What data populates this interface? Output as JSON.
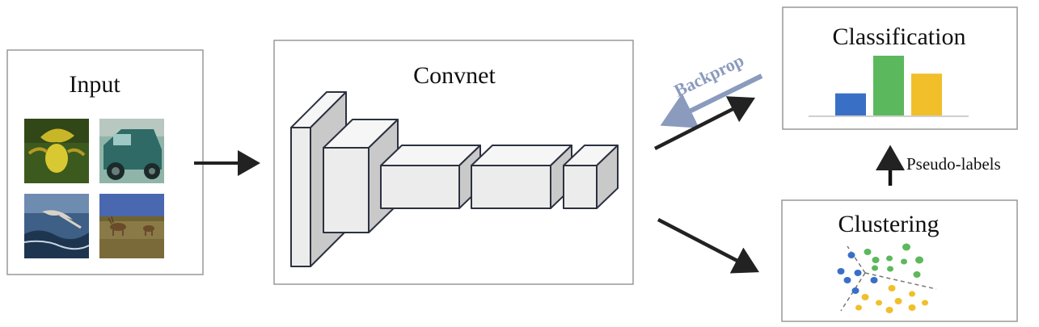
{
  "input": {
    "title": "Input",
    "images": [
      {
        "name": "flower",
        "colors": [
          "#3c5a1e",
          "#d8c832",
          "#2a3a14"
        ]
      },
      {
        "name": "car",
        "colors": [
          "#2f6a66",
          "#8fb5a8",
          "#1b2b2a"
        ]
      },
      {
        "name": "bird",
        "colors": [
          "#3e5f86",
          "#1e3550",
          "#d9d2c6"
        ]
      },
      {
        "name": "deer",
        "colors": [
          "#4a68b0",
          "#8a7a48",
          "#6f6330"
        ]
      }
    ]
  },
  "convnet": {
    "title": "Convnet"
  },
  "classification": {
    "title": "Classification",
    "bar_values": [
      0.37,
      1.0,
      0.7
    ],
    "bar_colors": [
      "#3a6fc6",
      "#5cb85c",
      "#f0bf2a"
    ]
  },
  "clustering": {
    "title": "Clustering"
  },
  "arrows": {
    "backprop_label": "Backprop",
    "pseudo_labels": "Pseudo-labels"
  },
  "colors": {
    "backprop": "#8b9bbd",
    "cluster_blue": "#3a6fc6",
    "cluster_green": "#5cb85c",
    "cluster_yellow": "#f0bf2a",
    "block_front": "#ececec",
    "block_top": "#f6f6f6",
    "block_side": "#c9c9c9"
  }
}
